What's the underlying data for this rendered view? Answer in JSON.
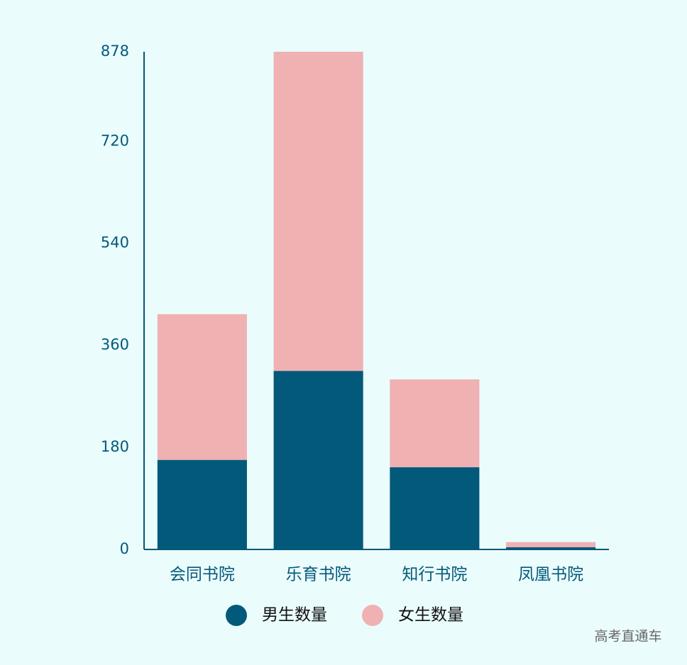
{
  "chart_data": {
    "type": "stacked_bar",
    "categories": [
      "会同书院",
      "乐育书院",
      "知行书院",
      "凤凰书院"
    ],
    "series": [
      {
        "name": "男生数量",
        "color": "#02597a",
        "values": [
          158,
          315,
          145,
          4
        ]
      },
      {
        "name": "女生数量",
        "color": "#f0b1b2",
        "values": [
          257,
          563,
          155,
          9
        ]
      }
    ],
    "ylim": [
      0,
      878
    ],
    "yticks": [
      0,
      180,
      360,
      540,
      720,
      878
    ],
    "grid": false,
    "legend": "bottom"
  },
  "watermark": "高考直通车"
}
